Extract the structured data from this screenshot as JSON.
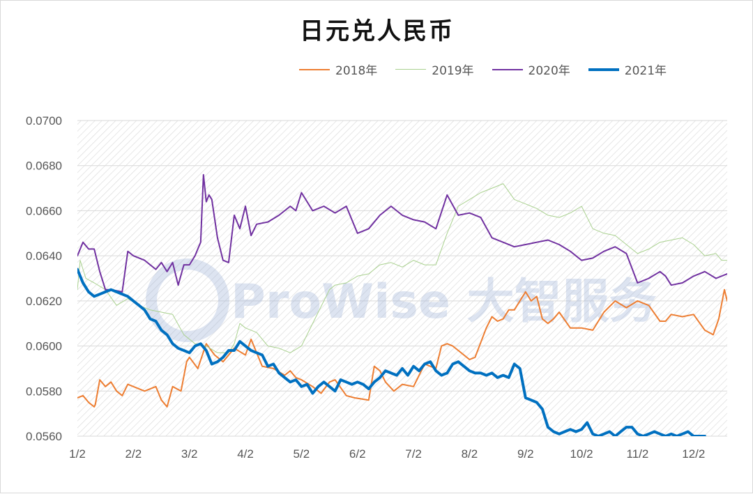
{
  "chart_data": {
    "type": "line",
    "title": "日元兑人民币",
    "x_tick_labels": [
      "1/2",
      "2/2",
      "3/2",
      "4/2",
      "5/2",
      "6/2",
      "7/2",
      "8/2",
      "9/2",
      "10/2",
      "11/2",
      "12/2"
    ],
    "y_tick_labels": [
      "0.0700",
      "0.0680",
      "0.0660",
      "0.0640",
      "0.0620",
      "0.0600",
      "0.0580",
      "0.0560"
    ],
    "ylim": [
      0.056,
      0.07
    ],
    "xlim": [
      0,
      11.6
    ],
    "grid": true,
    "legend_position": "top",
    "series": [
      {
        "name": "2018年",
        "color": "#ed7d31",
        "width": 2,
        "x": [
          0,
          0.1,
          0.2,
          0.3,
          0.32,
          0.4,
          0.5,
          0.6,
          0.7,
          0.8,
          0.9,
          1.0,
          1.2,
          1.4,
          1.5,
          1.6,
          1.7,
          1.85,
          1.95,
          2.0,
          2.15,
          2.3,
          2.45,
          2.6,
          2.8,
          3.0,
          3.1,
          3.3,
          3.5,
          3.7,
          3.8,
          3.9,
          4.0,
          4.2,
          4.35,
          4.5,
          4.6,
          4.8,
          4.95,
          5.2,
          5.3,
          5.4,
          5.5,
          5.65,
          5.8,
          6.0,
          6.2,
          6.4,
          6.5,
          6.6,
          6.7,
          6.8,
          7.0,
          7.1,
          7.3,
          7.4,
          7.5,
          7.6,
          7.7,
          7.8,
          7.85,
          7.9,
          8.0,
          8.1,
          8.2,
          8.3,
          8.4,
          8.5,
          8.6,
          8.8,
          9.0,
          9.2,
          9.4,
          9.6,
          9.8,
          10.0,
          10.2,
          10.4,
          10.5,
          10.6,
          10.8,
          11.0,
          11.2,
          11.35,
          11.45,
          11.55,
          11.6
        ],
        "values": [
          0.0577,
          0.0578,
          0.0575,
          0.0573,
          0.0574,
          0.0585,
          0.0582,
          0.0584,
          0.058,
          0.0578,
          0.0583,
          0.0582,
          0.058,
          0.0582,
          0.0576,
          0.0573,
          0.0582,
          0.058,
          0.0593,
          0.0595,
          0.059,
          0.0601,
          0.0596,
          0.0593,
          0.0599,
          0.0596,
          0.0603,
          0.0591,
          0.059,
          0.0587,
          0.0589,
          0.0586,
          0.0585,
          0.0582,
          0.0579,
          0.0584,
          0.0585,
          0.0578,
          0.0577,
          0.0576,
          0.0591,
          0.0589,
          0.0584,
          0.058,
          0.0583,
          0.0582,
          0.0592,
          0.059,
          0.06,
          0.0601,
          0.06,
          0.0598,
          0.0594,
          0.0595,
          0.0608,
          0.0613,
          0.0611,
          0.0612,
          0.0616,
          0.0616,
          0.0618,
          0.062,
          0.0624,
          0.062,
          0.0622,
          0.0612,
          0.061,
          0.0612,
          0.0615,
          0.0608,
          0.0608,
          0.0607,
          0.0615,
          0.062,
          0.0617,
          0.062,
          0.0618,
          0.0611,
          0.0611,
          0.0614,
          0.0613,
          0.0614,
          0.0607,
          0.0605,
          0.0612,
          0.0625,
          0.062
        ]
      },
      {
        "name": "2019年",
        "color": "#a9d18e",
        "width": 1,
        "x": [
          0,
          0.05,
          0.15,
          0.3,
          0.5,
          0.7,
          0.9,
          1.1,
          1.3,
          1.5,
          1.7,
          1.9,
          2.1,
          2.3,
          2.5,
          2.7,
          2.8,
          2.9,
          3.0,
          3.2,
          3.4,
          3.6,
          3.8,
          4.0,
          4.1,
          4.3,
          4.5,
          4.6,
          4.8,
          5.0,
          5.2,
          5.4,
          5.6,
          5.8,
          6.0,
          6.2,
          6.4,
          6.6,
          6.8,
          7.0,
          7.2,
          7.4,
          7.6,
          7.8,
          8.0,
          8.2,
          8.4,
          8.6,
          8.8,
          9.0,
          9.2,
          9.4,
          9.6,
          9.8,
          10.0,
          10.2,
          10.4,
          10.6,
          10.8,
          11.0,
          11.2,
          11.4,
          11.5,
          11.6
        ],
        "values": [
          0.0625,
          0.0638,
          0.063,
          0.0628,
          0.0625,
          0.0618,
          0.0621,
          0.0618,
          0.0616,
          0.0615,
          0.0614,
          0.0605,
          0.0601,
          0.06,
          0.0597,
          0.0597,
          0.0601,
          0.061,
          0.0608,
          0.0606,
          0.06,
          0.0599,
          0.0597,
          0.06,
          0.0605,
          0.0615,
          0.0625,
          0.0627,
          0.0628,
          0.0631,
          0.0632,
          0.0636,
          0.0637,
          0.0635,
          0.0638,
          0.0636,
          0.0636,
          0.065,
          0.0662,
          0.0665,
          0.0668,
          0.067,
          0.0672,
          0.0665,
          0.0663,
          0.0661,
          0.0658,
          0.0657,
          0.0659,
          0.0662,
          0.0652,
          0.065,
          0.0649,
          0.0645,
          0.0641,
          0.0643,
          0.0646,
          0.0647,
          0.0648,
          0.0645,
          0.064,
          0.0641,
          0.0638,
          0.0638
        ]
      },
      {
        "name": "2020年",
        "color": "#7030a0",
        "width": 2,
        "x": [
          0,
          0.1,
          0.2,
          0.3,
          0.4,
          0.5,
          0.6,
          0.8,
          0.9,
          1.0,
          1.2,
          1.4,
          1.5,
          1.6,
          1.7,
          1.8,
          1.9,
          2.0,
          2.1,
          2.15,
          2.2,
          2.25,
          2.3,
          2.35,
          2.4,
          2.5,
          2.6,
          2.7,
          2.8,
          2.9,
          3.0,
          3.1,
          3.2,
          3.4,
          3.6,
          3.8,
          3.9,
          4.0,
          4.2,
          4.4,
          4.6,
          4.8,
          5.0,
          5.2,
          5.4,
          5.6,
          5.8,
          6.0,
          6.2,
          6.4,
          6.6,
          6.8,
          7.0,
          7.2,
          7.4,
          7.6,
          7.8,
          8.0,
          8.2,
          8.4,
          8.6,
          8.8,
          9.0,
          9.2,
          9.4,
          9.6,
          9.8,
          10.0,
          10.2,
          10.4,
          10.5,
          10.6,
          10.8,
          11.0,
          11.2,
          11.4,
          11.6
        ],
        "values": [
          0.064,
          0.0646,
          0.0643,
          0.0643,
          0.0633,
          0.0625,
          0.0625,
          0.0624,
          0.0642,
          0.064,
          0.0638,
          0.0634,
          0.0637,
          0.0633,
          0.0637,
          0.0627,
          0.0636,
          0.0636,
          0.064,
          0.0643,
          0.0646,
          0.0676,
          0.0664,
          0.0667,
          0.0665,
          0.0648,
          0.0638,
          0.0637,
          0.0658,
          0.0652,
          0.0662,
          0.0649,
          0.0654,
          0.0655,
          0.0658,
          0.0662,
          0.066,
          0.0668,
          0.066,
          0.0662,
          0.0659,
          0.0662,
          0.065,
          0.0652,
          0.0658,
          0.0662,
          0.0658,
          0.0656,
          0.0655,
          0.0652,
          0.0667,
          0.0658,
          0.0659,
          0.0657,
          0.0648,
          0.0646,
          0.0644,
          0.0645,
          0.0646,
          0.0647,
          0.0645,
          0.0642,
          0.0638,
          0.0639,
          0.0642,
          0.0644,
          0.0641,
          0.0628,
          0.063,
          0.0633,
          0.0631,
          0.0627,
          0.0628,
          0.0631,
          0.0633,
          0.063,
          0.0632
        ]
      },
      {
        "name": "2021年",
        "color": "#0070c0",
        "width": 4,
        "x": [
          0,
          0.1,
          0.2,
          0.3,
          0.4,
          0.5,
          0.6,
          0.7,
          0.8,
          0.9,
          1.0,
          1.1,
          1.2,
          1.3,
          1.4,
          1.5,
          1.6,
          1.7,
          1.8,
          1.9,
          2.0,
          2.1,
          2.2,
          2.3,
          2.4,
          2.5,
          2.6,
          2.7,
          2.8,
          2.9,
          3.0,
          3.1,
          3.2,
          3.3,
          3.4,
          3.5,
          3.6,
          3.7,
          3.8,
          3.9,
          4.0,
          4.1,
          4.2,
          4.3,
          4.4,
          4.5,
          4.6,
          4.7,
          4.8,
          4.9,
          5.0,
          5.1,
          5.2,
          5.3,
          5.4,
          5.5,
          5.6,
          5.7,
          5.8,
          5.9,
          6.0,
          6.1,
          6.2,
          6.3,
          6.4,
          6.5,
          6.6,
          6.7,
          6.8,
          6.9,
          7.0,
          7.1,
          7.2,
          7.3,
          7.4,
          7.5,
          7.6,
          7.7,
          7.8,
          7.9,
          8.0,
          8.1,
          8.2,
          8.3,
          8.4,
          8.5,
          8.6,
          8.7,
          8.8,
          8.9,
          9.0,
          9.1,
          9.2,
          9.3,
          9.4,
          9.5,
          9.6,
          9.7,
          9.8,
          9.9,
          10.0,
          10.1,
          10.2,
          10.3,
          10.4,
          10.5,
          10.6,
          10.7,
          10.8,
          10.9,
          11.0,
          11.1,
          11.2
        ],
        "values": [
          0.0634,
          0.0628,
          0.0624,
          0.0622,
          0.0623,
          0.0624,
          0.0625,
          0.0624,
          0.0623,
          0.0622,
          0.062,
          0.0618,
          0.0616,
          0.0612,
          0.0611,
          0.0607,
          0.0605,
          0.0601,
          0.0599,
          0.0598,
          0.0597,
          0.06,
          0.0601,
          0.0598,
          0.0592,
          0.0593,
          0.0595,
          0.0598,
          0.0598,
          0.0602,
          0.06,
          0.0598,
          0.0597,
          0.0596,
          0.0591,
          0.0592,
          0.0588,
          0.0586,
          0.0584,
          0.0585,
          0.0582,
          0.0583,
          0.0579,
          0.0582,
          0.0584,
          0.0582,
          0.058,
          0.0585,
          0.0584,
          0.0583,
          0.0584,
          0.0583,
          0.0581,
          0.0584,
          0.0586,
          0.0589,
          0.0588,
          0.0587,
          0.059,
          0.0587,
          0.0591,
          0.0589,
          0.0592,
          0.0593,
          0.0589,
          0.0587,
          0.0588,
          0.0592,
          0.0593,
          0.0591,
          0.0589,
          0.0588,
          0.0588,
          0.0587,
          0.0588,
          0.0586,
          0.0587,
          0.0586,
          0.0592,
          0.059,
          0.0577,
          0.0576,
          0.0575,
          0.0572,
          0.0564,
          0.0562,
          0.0561,
          0.0562,
          0.0563,
          0.0562,
          0.0563,
          0.0566,
          0.0561,
          0.056,
          0.0561,
          0.0562,
          0.056,
          0.0562,
          0.0564,
          0.0564,
          0.0561,
          0.056,
          0.0561,
          0.0562,
          0.0561,
          0.056,
          0.0561,
          0.056,
          0.0561,
          0.0562,
          0.056,
          0.056,
          0.056
        ]
      }
    ]
  },
  "watermark": {
    "text": "ProWise 大智服务"
  }
}
